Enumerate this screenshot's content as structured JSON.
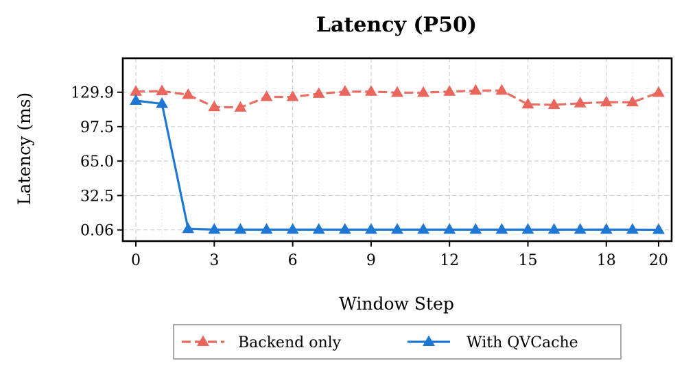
{
  "chart_data": {
    "type": "line",
    "title": "Latency (P50)",
    "xlabel": "Window Step",
    "ylabel": "Latency (ms)",
    "x": [
      0,
      1,
      2,
      3,
      4,
      5,
      6,
      7,
      8,
      9,
      10,
      11,
      12,
      13,
      14,
      15,
      16,
      17,
      18,
      19,
      20
    ],
    "xticks": [
      0,
      3,
      6,
      9,
      12,
      15,
      18,
      20
    ],
    "yticks": [
      0.06,
      32.5,
      65.0,
      97.5,
      129.9
    ],
    "ytick_labels": [
      "0.06",
      "32.5",
      "65.0",
      "97.5",
      "129.9"
    ],
    "xlim": [
      -0.5,
      20.5
    ],
    "ylim": [
      -10.5,
      162
    ],
    "grid": true,
    "legend_position": "bottom-center",
    "series": [
      {
        "name": "Backend only",
        "color": "#e8665c",
        "line_style": "dashed",
        "marker": "triangle",
        "values": [
          130.5,
          131.0,
          127.5,
          116.0,
          115.5,
          125.5,
          125.5,
          128.5,
          130.5,
          130.5,
          129.5,
          129.5,
          130.5,
          131.5,
          131.5,
          118.5,
          118.0,
          119.5,
          120.5,
          120.5,
          129.5
        ]
      },
      {
        "name": "With QVCache",
        "color": "#1f77d4",
        "line_style": "solid",
        "marker": "triangle",
        "values": [
          122.0,
          119.0,
          1.0,
          0.3,
          0.3,
          0.3,
          0.3,
          0.3,
          0.3,
          0.3,
          0.3,
          0.3,
          0.3,
          0.3,
          0.3,
          0.3,
          0.3,
          0.3,
          0.3,
          0.3,
          0.2
        ]
      }
    ]
  }
}
